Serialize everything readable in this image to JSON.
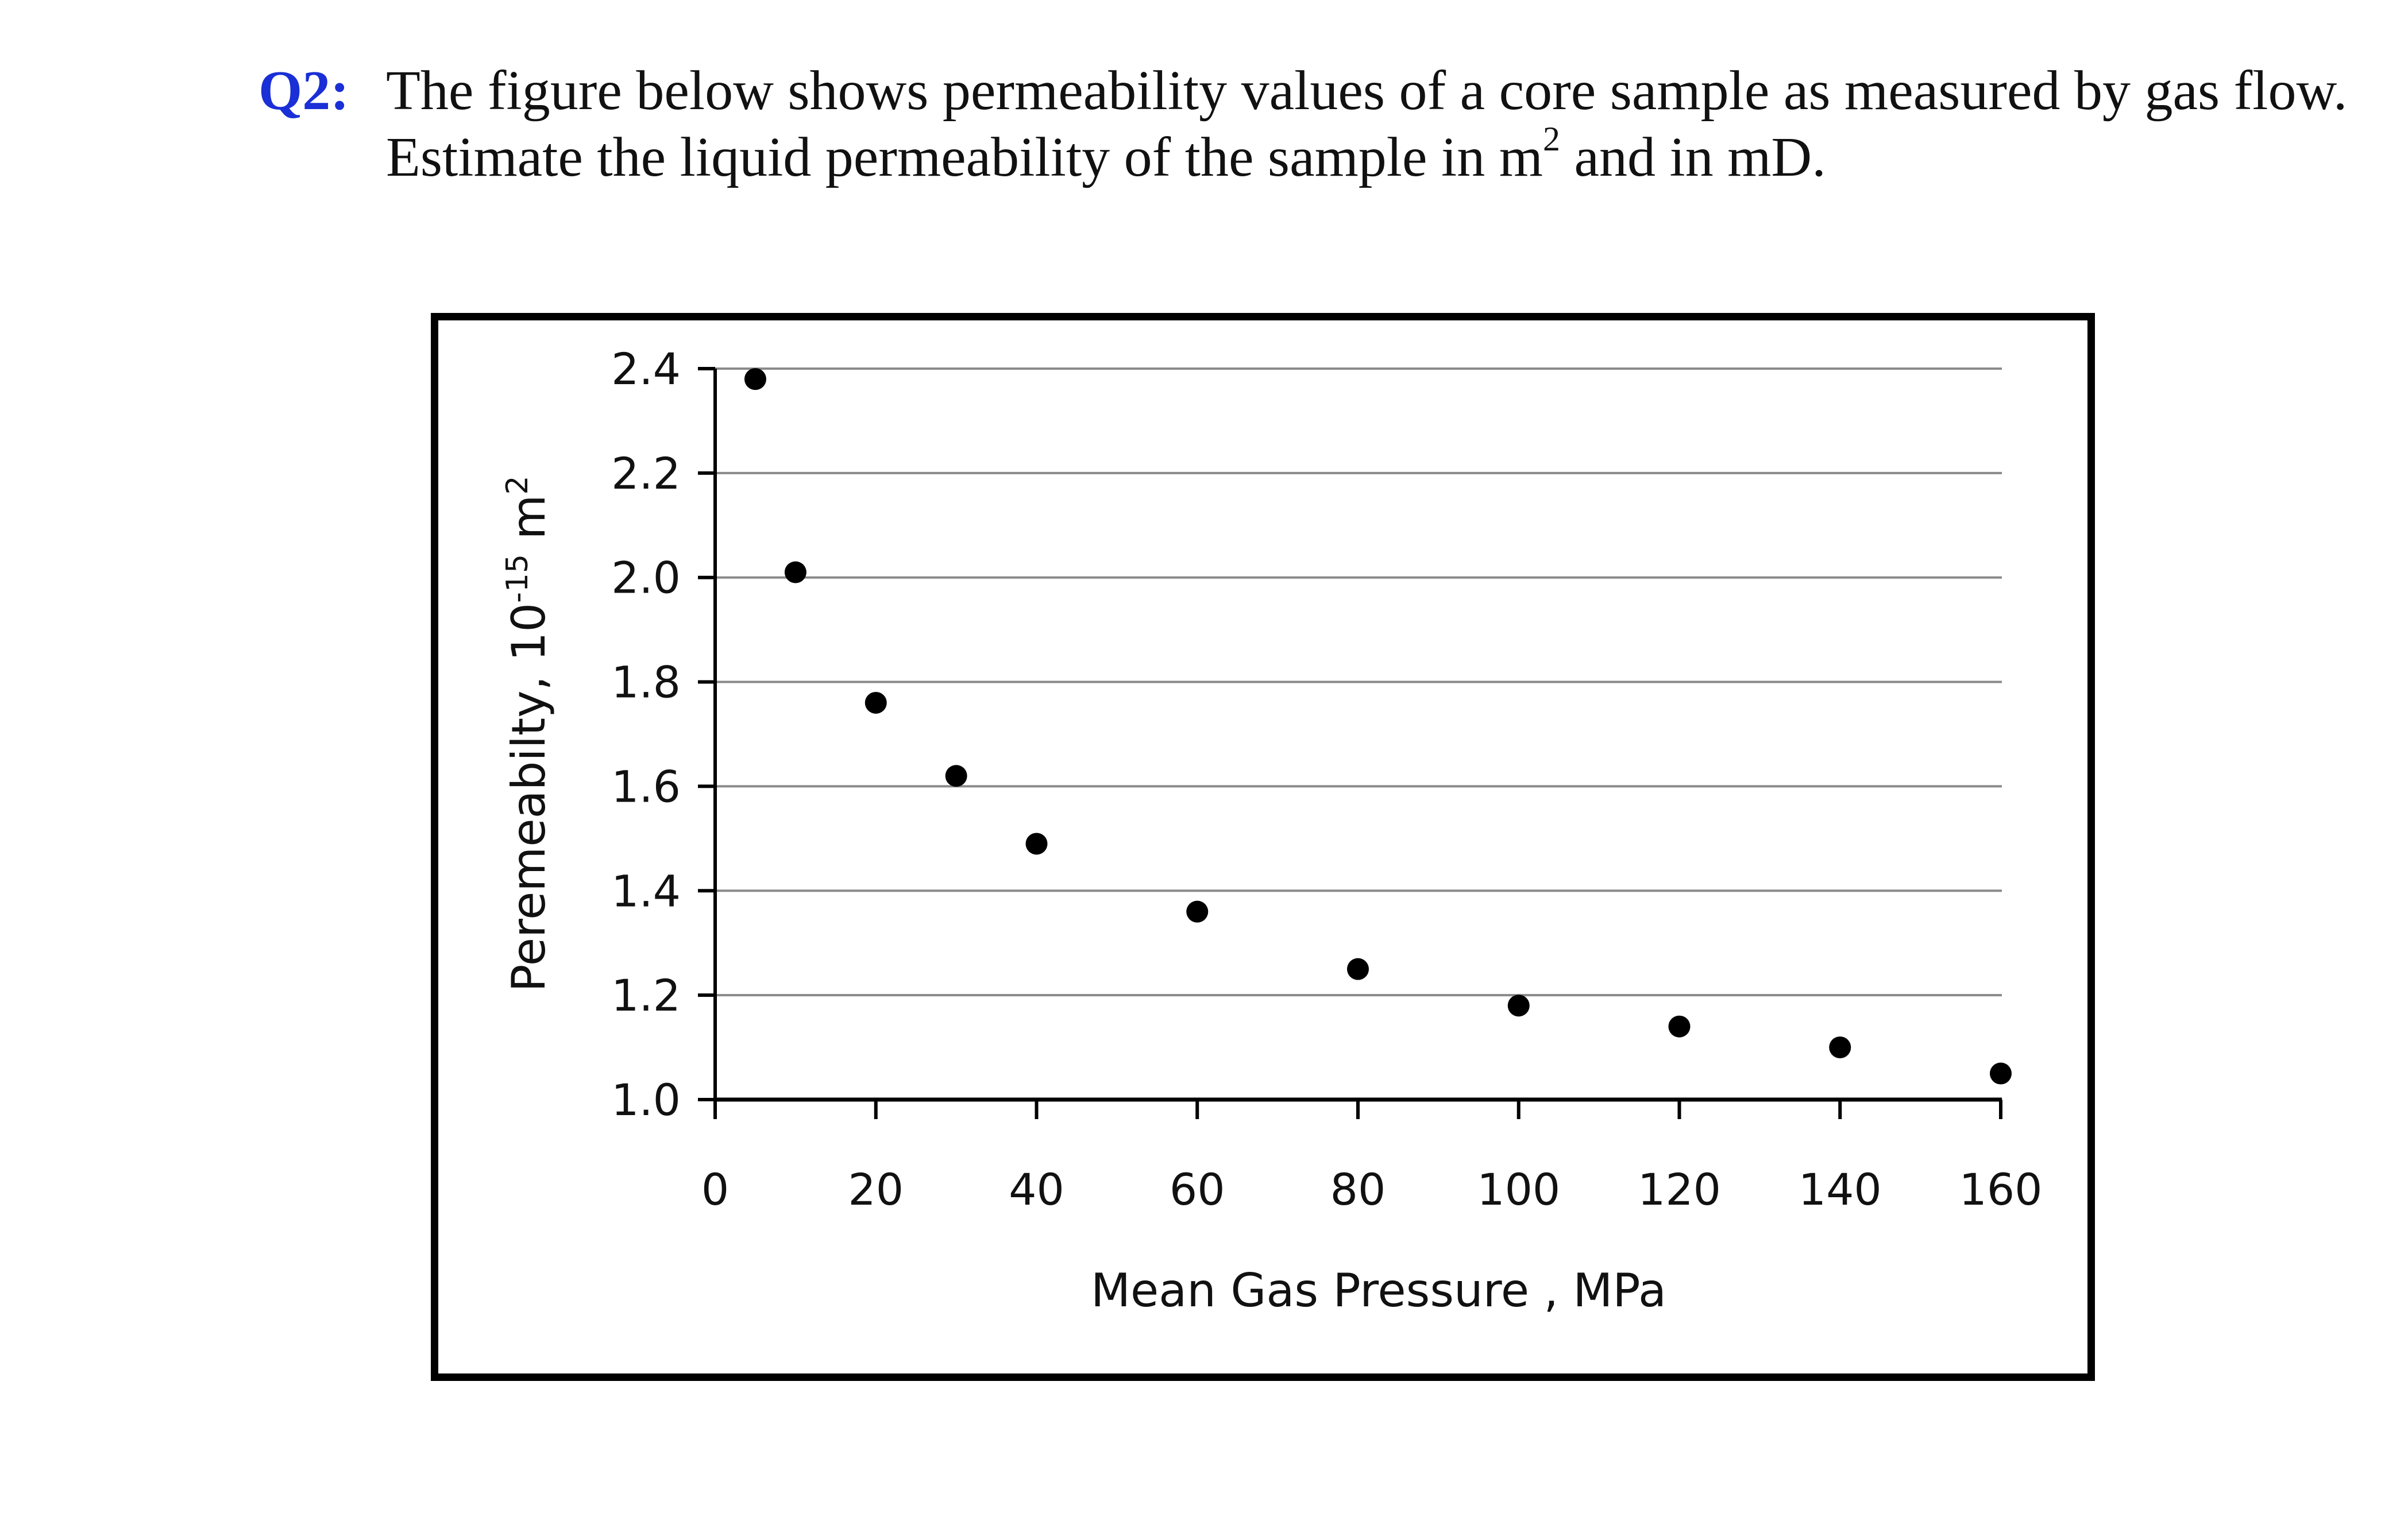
{
  "question": {
    "label": "Q2:",
    "line1": "The figure below shows permeability values of a core sample as measured by gas flow.",
    "line2_before": "Estimate the liquid permeability of the sample in m",
    "line2_sup": "2",
    "line2_after": " and in mD."
  },
  "chart_data": {
    "type": "scatter",
    "title": "",
    "xlabel": "Mean Gas Pressure , MPa",
    "ylabel": "Peremeabilty, 10",
    "ylabel_exp": "-15",
    "ylabel_unit": " m",
    "ylabel_unit_exp": "2",
    "xlim": [
      0,
      160
    ],
    "ylim": [
      1.0,
      2.4
    ],
    "xticks": [
      0,
      20,
      40,
      60,
      80,
      100,
      120,
      140,
      160
    ],
    "xtick_labels": [
      "0",
      "20",
      "40",
      "60",
      "80",
      "100",
      "120",
      "140",
      "160"
    ],
    "yticks": [
      1.0,
      1.2,
      1.4,
      1.6,
      1.8,
      2.0,
      2.2,
      2.4
    ],
    "ytick_labels": [
      "1.0",
      "1.2",
      "1.4",
      "1.6",
      "1.8",
      "2.0",
      "2.2",
      "2.4"
    ],
    "grid": "horizontal",
    "legend": "none",
    "series": [
      {
        "color": "#000000",
        "points": [
          {
            "x": 5,
            "y": 2.38
          },
          {
            "x": 10,
            "y": 2.01
          },
          {
            "x": 20,
            "y": 1.76
          },
          {
            "x": 30,
            "y": 1.62
          },
          {
            "x": 40,
            "y": 1.49
          },
          {
            "x": 60,
            "y": 1.36
          },
          {
            "x": 80,
            "y": 1.25
          },
          {
            "x": 100,
            "y": 1.18
          },
          {
            "x": 120,
            "y": 1.14
          },
          {
            "x": 140,
            "y": 1.1
          },
          {
            "x": 160,
            "y": 1.05
          }
        ]
      }
    ]
  }
}
